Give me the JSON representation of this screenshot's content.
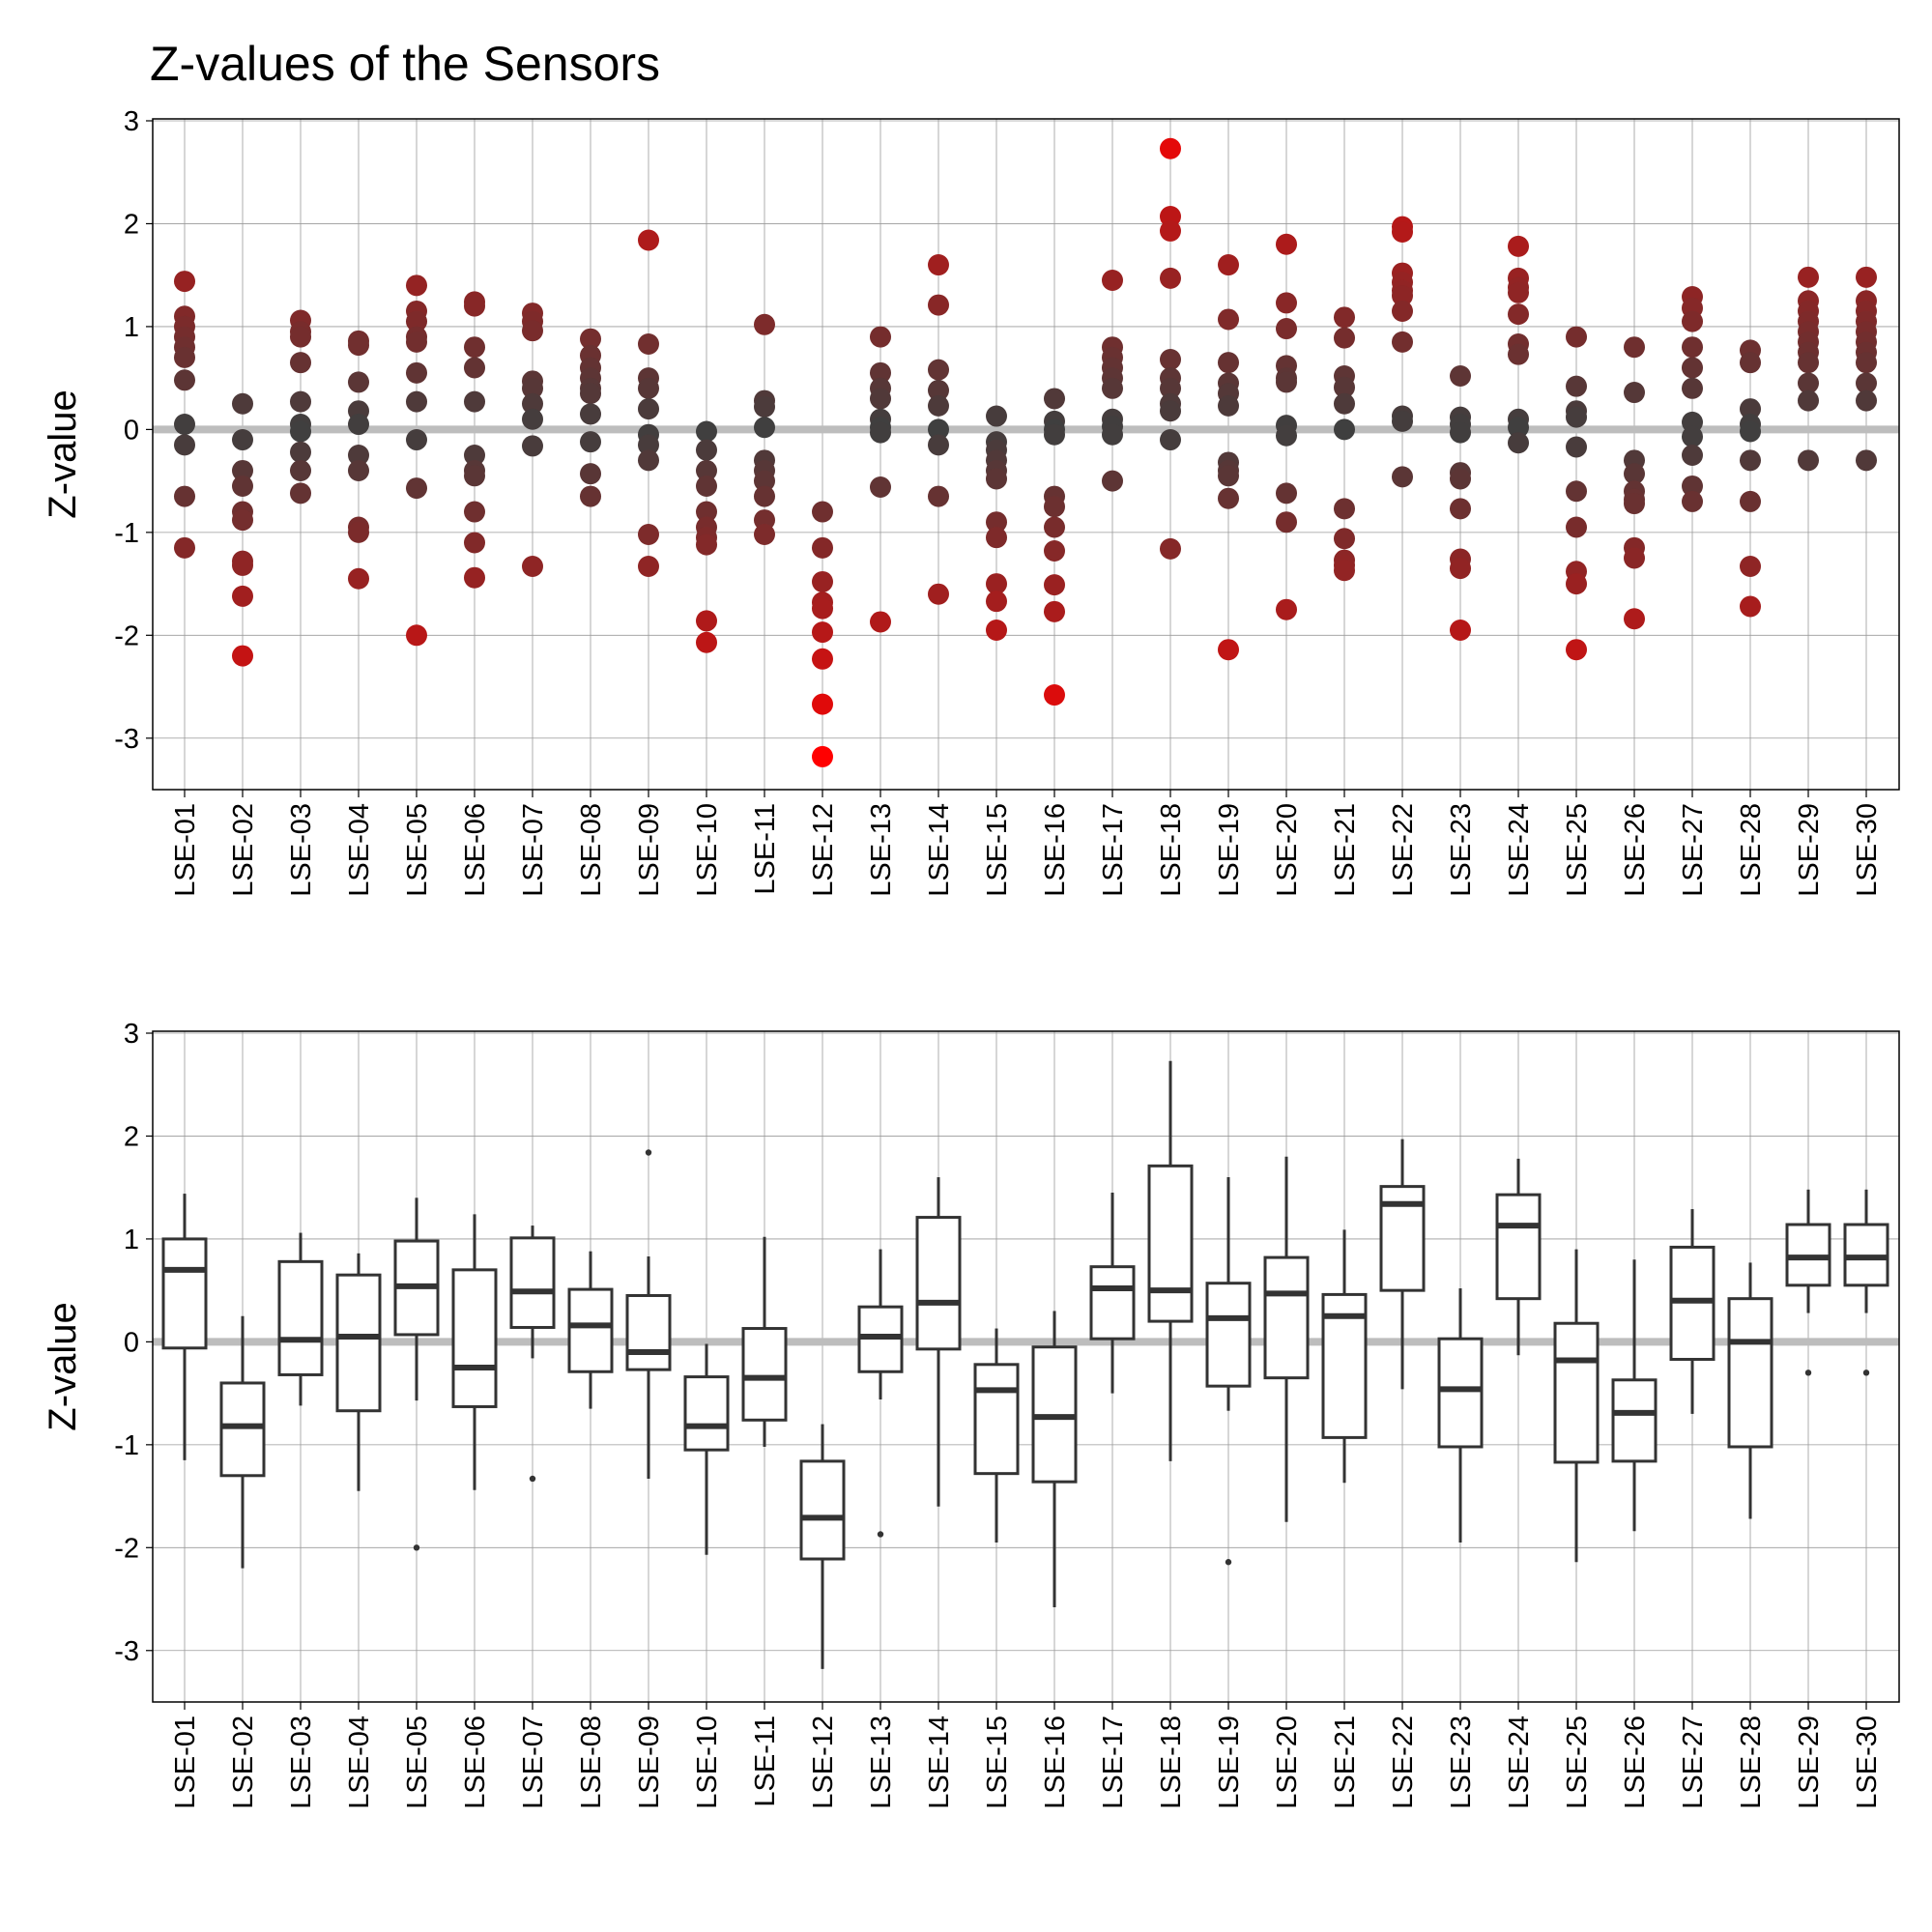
{
  "title": "Z-values of the Sensors",
  "colors": {
    "low": "#3f3f3f",
    "high": "#ff0000",
    "reference_line": "#bdbdbd",
    "grid": "#9a9a9a",
    "box_stroke": "#333333"
  },
  "chart_data": [
    {
      "type": "scatter",
      "ylabel": "Z-value",
      "ylim": [
        -3.5,
        3
      ],
      "y_ticks": [
        "-3",
        "-2",
        "-1",
        "0",
        "1",
        "2",
        "3"
      ],
      "reference_y": 0,
      "grid": true,
      "color_mapping": "absolute Z-value (dark grey near 0, red at large magnitude)",
      "categories": [
        "LSE-01",
        "LSE-02",
        "LSE-03",
        "LSE-04",
        "LSE-05",
        "LSE-06",
        "LSE-07",
        "LSE-08",
        "LSE-09",
        "LSE-10",
        "LSE-11",
        "LSE-12",
        "LSE-13",
        "LSE-14",
        "LSE-15",
        "LSE-16",
        "LSE-17",
        "LSE-18",
        "LSE-19",
        "LSE-20",
        "LSE-21",
        "LSE-22",
        "LSE-23",
        "LSE-24",
        "LSE-25",
        "LSE-26",
        "LSE-27",
        "LSE-28",
        "LSE-29",
        "LSE-30"
      ],
      "points": [
        [
          1.44,
          1.1,
          1.0,
          0.9,
          0.8,
          0.7,
          0.48,
          0.05,
          -0.15,
          -0.65,
          -1.15
        ],
        [
          0.25,
          -0.1,
          -0.4,
          -0.55,
          -0.8,
          -0.88,
          -1.28,
          -1.32,
          -1.62,
          -2.2
        ],
        [
          1.06,
          0.95,
          0.9,
          0.65,
          0.27,
          0.05,
          -0.02,
          -0.22,
          -0.4,
          -0.62
        ],
        [
          0.86,
          0.82,
          0.46,
          0.18,
          0.05,
          -0.25,
          -0.4,
          -0.95,
          -1.0,
          -1.45
        ],
        [
          1.4,
          1.15,
          1.05,
          0.9,
          0.85,
          0.55,
          0.27,
          -0.1,
          -0.57,
          -2.0
        ],
        [
          1.24,
          1.2,
          0.8,
          0.6,
          0.27,
          -0.25,
          -0.4,
          -0.45,
          -0.8,
          -1.1,
          -1.44
        ],
        [
          1.13,
          1.05,
          0.96,
          0.47,
          0.4,
          0.25,
          0.1,
          -0.16,
          -1.33
        ],
        [
          0.88,
          0.72,
          0.6,
          0.5,
          0.4,
          0.35,
          0.15,
          -0.12,
          -0.43,
          -0.65
        ],
        [
          1.84,
          0.83,
          0.5,
          0.4,
          0.2,
          -0.05,
          -0.15,
          -0.3,
          -1.02,
          -1.33
        ],
        [
          -0.02,
          -0.2,
          -0.4,
          -0.55,
          -0.8,
          -0.95,
          -1.05,
          -1.12,
          -1.86,
          -2.07
        ],
        [
          1.02,
          0.28,
          0.22,
          0.02,
          -0.3,
          -0.4,
          -0.5,
          -0.65,
          -0.88,
          -1.02
        ],
        [
          -0.8,
          -1.15,
          -1.48,
          -1.68,
          -1.74,
          -1.97,
          -2.23,
          -2.67,
          -3.18
        ],
        [
          0.9,
          0.55,
          0.4,
          0.3,
          0.1,
          0.02,
          -0.03,
          -0.56,
          -1.87
        ],
        [
          1.6,
          1.21,
          0.58,
          0.38,
          0.23,
          0.0,
          -0.15,
          -0.65,
          -1.6
        ],
        [
          0.13,
          -0.12,
          -0.2,
          -0.3,
          -0.4,
          -0.48,
          -0.9,
          -1.05,
          -1.5,
          -1.67,
          -1.95
        ],
        [
          0.3,
          0.08,
          0.0,
          -0.05,
          -0.65,
          -0.75,
          -0.95,
          -1.18,
          -1.51,
          -1.77,
          -2.58
        ],
        [
          1.45,
          0.8,
          0.7,
          0.6,
          0.5,
          0.4,
          0.1,
          0.03,
          -0.05,
          -0.5
        ],
        [
          2.73,
          2.07,
          1.93,
          1.47,
          0.68,
          0.5,
          0.4,
          0.25,
          0.18,
          -0.1,
          -1.16
        ],
        [
          1.6,
          1.07,
          0.65,
          0.45,
          0.35,
          0.23,
          -0.32,
          -0.4,
          -0.45,
          -0.67,
          -2.14
        ],
        [
          1.8,
          1.23,
          0.98,
          0.62,
          0.5,
          0.46,
          0.04,
          -0.06,
          -0.62,
          -0.9,
          -1.75
        ],
        [
          1.09,
          0.89,
          0.52,
          0.41,
          0.25,
          0.0,
          -0.77,
          -1.06,
          -1.27,
          -1.32,
          -1.37
        ],
        [
          1.97,
          1.92,
          1.52,
          1.43,
          1.35,
          1.3,
          1.15,
          0.85,
          0.13,
          0.08,
          -0.46
        ],
        [
          0.52,
          0.12,
          0.05,
          -0.03,
          -0.42,
          -0.48,
          -0.77,
          -1.26,
          -1.35,
          -1.95
        ],
        [
          1.78,
          1.47,
          1.38,
          1.33,
          1.12,
          0.83,
          0.73,
          0.1,
          0.02,
          -0.13
        ],
        [
          0.9,
          0.42,
          0.18,
          0.12,
          -0.17,
          -0.6,
          -0.95,
          -1.38,
          -1.5,
          -2.14
        ],
        [
          0.8,
          0.36,
          -0.3,
          -0.43,
          -0.6,
          -0.68,
          -0.72,
          -1.15,
          -1.25,
          -1.84
        ],
        [
          1.29,
          1.18,
          1.05,
          0.8,
          0.6,
          0.4,
          0.07,
          -0.07,
          -0.25,
          -0.55,
          -0.7
        ],
        [
          0.77,
          0.65,
          0.2,
          0.05,
          -0.02,
          -0.3,
          -0.7,
          -1.33,
          -1.72
        ],
        [
          1.48,
          1.25,
          1.15,
          1.05,
          0.95,
          0.85,
          0.75,
          0.65,
          0.45,
          0.28,
          -0.3
        ],
        [
          1.48,
          1.25,
          1.15,
          1.05,
          0.95,
          0.85,
          0.75,
          0.65,
          0.45,
          0.28,
          -0.3
        ]
      ]
    },
    {
      "type": "box",
      "ylabel": "Z-value",
      "ylim": [
        -3.5,
        3
      ],
      "y_ticks": [
        "-3",
        "-2",
        "-1",
        "0",
        "1",
        "2",
        "3"
      ],
      "reference_y": 0,
      "grid": true,
      "categories": [
        "LSE-01",
        "LSE-02",
        "LSE-03",
        "LSE-04",
        "LSE-05",
        "LSE-06",
        "LSE-07",
        "LSE-08",
        "LSE-09",
        "LSE-10",
        "LSE-11",
        "LSE-12",
        "LSE-13",
        "LSE-14",
        "LSE-15",
        "LSE-16",
        "LSE-17",
        "LSE-18",
        "LSE-19",
        "LSE-20",
        "LSE-21",
        "LSE-22",
        "LSE-23",
        "LSE-24",
        "LSE-25",
        "LSE-26",
        "LSE-27",
        "LSE-28",
        "LSE-29",
        "LSE-30"
      ],
      "boxes": [
        {
          "low": -1.15,
          "q1": -0.06,
          "median": 0.7,
          "q3": 1.0,
          "high": 1.44,
          "outliers": []
        },
        {
          "low": -2.2,
          "q1": -1.3,
          "median": -0.82,
          "q3": -0.4,
          "high": 0.25,
          "outliers": []
        },
        {
          "low": -0.62,
          "q1": -0.32,
          "median": 0.02,
          "q3": 0.78,
          "high": 1.06,
          "outliers": []
        },
        {
          "low": -1.45,
          "q1": -0.67,
          "median": 0.05,
          "q3": 0.65,
          "high": 0.86,
          "outliers": []
        },
        {
          "low": -0.57,
          "q1": 0.07,
          "median": 0.54,
          "q3": 0.98,
          "high": 1.4,
          "outliers": [
            -2.0
          ]
        },
        {
          "low": -1.44,
          "q1": -0.63,
          "median": -0.25,
          "q3": 0.7,
          "high": 1.24,
          "outliers": []
        },
        {
          "low": -0.16,
          "q1": 0.14,
          "median": 0.49,
          "q3": 1.01,
          "high": 1.13,
          "outliers": [
            -1.33
          ]
        },
        {
          "low": -0.65,
          "q1": -0.29,
          "median": 0.16,
          "q3": 0.51,
          "high": 0.88,
          "outliers": []
        },
        {
          "low": -1.33,
          "q1": -0.27,
          "median": -0.1,
          "q3": 0.45,
          "high": 0.83,
          "outliers": [
            1.84
          ]
        },
        {
          "low": -2.07,
          "q1": -1.05,
          "median": -0.82,
          "q3": -0.34,
          "high": -0.02,
          "outliers": []
        },
        {
          "low": -1.02,
          "q1": -0.76,
          "median": -0.35,
          "q3": 0.13,
          "high": 1.02,
          "outliers": []
        },
        {
          "low": -3.18,
          "q1": -2.11,
          "median": -1.71,
          "q3": -1.16,
          "high": -0.8,
          "outliers": []
        },
        {
          "low": -0.56,
          "q1": -0.29,
          "median": 0.05,
          "q3": 0.34,
          "high": 0.9,
          "outliers": [
            -1.87
          ]
        },
        {
          "low": -1.6,
          "q1": -0.07,
          "median": 0.38,
          "q3": 1.21,
          "high": 1.6,
          "outliers": []
        },
        {
          "low": -1.95,
          "q1": -1.28,
          "median": -0.47,
          "q3": -0.22,
          "high": 0.13,
          "outliers": []
        },
        {
          "low": -2.58,
          "q1": -1.36,
          "median": -0.73,
          "q3": -0.05,
          "high": 0.3,
          "outliers": []
        },
        {
          "low": -0.5,
          "q1": 0.03,
          "median": 0.52,
          "q3": 0.73,
          "high": 1.45,
          "outliers": []
        },
        {
          "low": -1.16,
          "q1": 0.2,
          "median": 0.5,
          "q3": 1.71,
          "high": 2.73,
          "outliers": []
        },
        {
          "low": -0.67,
          "q1": -0.43,
          "median": 0.23,
          "q3": 0.57,
          "high": 1.6,
          "outliers": [
            -2.14
          ]
        },
        {
          "low": -1.75,
          "q1": -0.35,
          "median": 0.47,
          "q3": 0.82,
          "high": 1.8,
          "outliers": []
        },
        {
          "low": -1.37,
          "q1": -0.93,
          "median": 0.25,
          "q3": 0.46,
          "high": 1.09,
          "outliers": []
        },
        {
          "low": -0.46,
          "q1": 0.5,
          "median": 1.34,
          "q3": 1.51,
          "high": 1.97,
          "outliers": []
        },
        {
          "low": -1.95,
          "q1": -1.02,
          "median": -0.46,
          "q3": 0.03,
          "high": 0.52,
          "outliers": []
        },
        {
          "low": -0.13,
          "q1": 0.42,
          "median": 1.13,
          "q3": 1.43,
          "high": 1.78,
          "outliers": []
        },
        {
          "low": -2.14,
          "q1": -1.17,
          "median": -0.18,
          "q3": 0.18,
          "high": 0.9,
          "outliers": []
        },
        {
          "low": -1.84,
          "q1": -1.16,
          "median": -0.69,
          "q3": -0.37,
          "high": 0.8,
          "outliers": []
        },
        {
          "low": -0.7,
          "q1": -0.17,
          "median": 0.4,
          "q3": 0.92,
          "high": 1.29,
          "outliers": []
        },
        {
          "low": -1.72,
          "q1": -1.02,
          "median": 0.0,
          "q3": 0.42,
          "high": 0.77,
          "outliers": []
        },
        {
          "low": 0.28,
          "q1": 0.55,
          "median": 0.82,
          "q3": 1.14,
          "high": 1.48,
          "outliers": [
            -0.3
          ]
        },
        {
          "low": 0.28,
          "q1": 0.55,
          "median": 0.82,
          "q3": 1.14,
          "high": 1.48,
          "outliers": [
            -0.3
          ]
        }
      ]
    }
  ]
}
